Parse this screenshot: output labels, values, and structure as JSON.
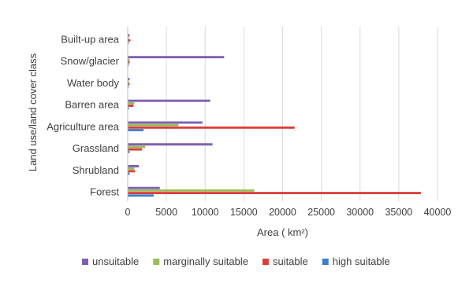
{
  "chart_data": {
    "type": "bar",
    "orientation": "horizontal",
    "title": "",
    "xlabel": "Area ( km²)",
    "ylabel": "Land use/land cover class",
    "xlim": [
      0,
      40000
    ],
    "xticks": [
      0,
      5000,
      10000,
      15000,
      20000,
      25000,
      30000,
      35000,
      40000
    ],
    "grid": "vertical",
    "legend_position": "bottom",
    "categories": [
      "Forest",
      "Shrubland",
      "Grassland",
      "Agriculture area",
      "Barren area",
      "Water body",
      "Snow/glacier",
      "Built-up area"
    ],
    "series": [
      {
        "name": "unsuitable",
        "color": "#7f5fb0",
        "values": [
          4100,
          1400,
          10900,
          9600,
          10600,
          200,
          12400,
          200
        ]
      },
      {
        "name": "marginally suitable",
        "color": "#9bbb59",
        "values": [
          16300,
          800,
          2200,
          6500,
          800,
          100,
          200,
          100
        ]
      },
      {
        "name": "suitable",
        "color": "#d9403a",
        "values": [
          37800,
          900,
          1800,
          21500,
          700,
          200,
          200,
          300
        ]
      },
      {
        "name": "high suitable",
        "color": "#3f7fca",
        "values": [
          3300,
          200,
          200,
          2000,
          100,
          50,
          50,
          50
        ]
      }
    ]
  }
}
